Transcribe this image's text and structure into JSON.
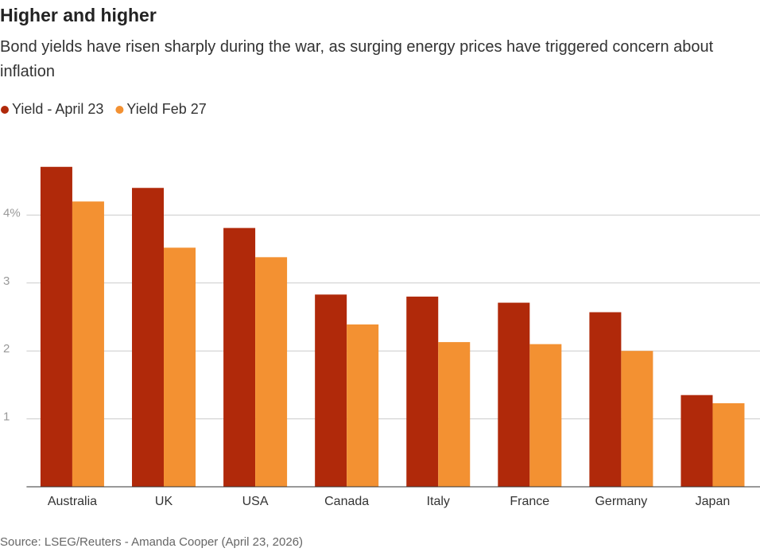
{
  "chart_data": {
    "type": "bar",
    "title": "Higher and higher",
    "subtitle": "Bond yields have risen sharply during the war, as surging energy prices have triggered concern about inflation",
    "source": "Source: LSEG/Reuters - Amanda Cooper (April 23, 2026)",
    "categories": [
      "Australia",
      "UK",
      "USA",
      "Canada",
      "Italy",
      "France",
      "Germany",
      "Japan"
    ],
    "series": [
      {
        "name": "Yield - April 23",
        "color": "#b0290a",
        "values": [
          4.71,
          4.4,
          3.81,
          2.83,
          2.8,
          2.71,
          2.57,
          1.35
        ]
      },
      {
        "name": "Yield Feb 27",
        "color": "#f39132",
        "values": [
          4.2,
          3.52,
          3.38,
          2.39,
          2.13,
          2.1,
          2.0,
          1.23
        ]
      }
    ],
    "ylim": [
      0,
      5
    ],
    "yticks": [
      1,
      2,
      3,
      {
        "value": 4,
        "label": "4%"
      }
    ],
    "grid": true
  }
}
